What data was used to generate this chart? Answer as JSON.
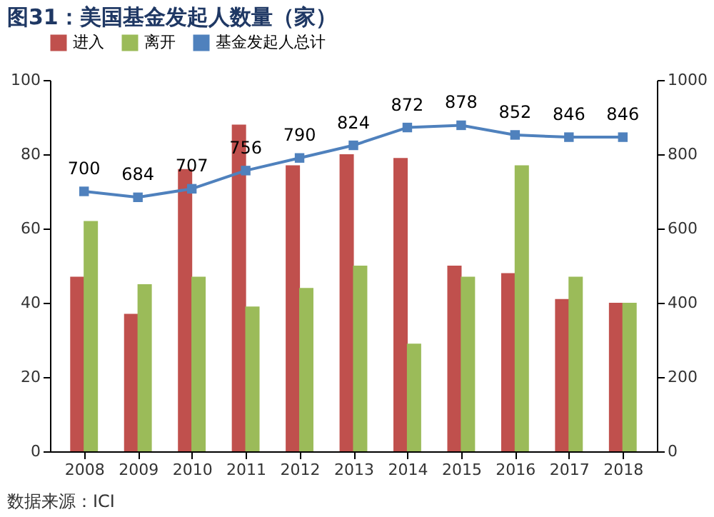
{
  "chart_data": {
    "type": "bar",
    "title": "图31：美国基金发起人数量（家）",
    "categories": [
      "2008",
      "2009",
      "2010",
      "2011",
      "2012",
      "2013",
      "2014",
      "2015",
      "2016",
      "2017",
      "2018"
    ],
    "series": [
      {
        "name": "进入",
        "color": "#c0504d",
        "values": [
          47,
          37,
          76,
          88,
          77,
          80,
          79,
          50,
          48,
          41,
          40
        ]
      },
      {
        "name": "离开",
        "color": "#9bbb59",
        "values": [
          62,
          45,
          47,
          39,
          44,
          50,
          29,
          47,
          77,
          47,
          40
        ]
      },
      {
        "name": "基金发起人总计",
        "color": "#4f81bd",
        "type": "line",
        "axis": "y2",
        "marker": "square",
        "values": [
          700,
          684,
          707,
          756,
          790,
          824,
          872,
          878,
          852,
          846,
          846
        ],
        "value_labels": [
          "700",
          "684",
          "707",
          "756",
          "790",
          "824",
          "872",
          "878",
          "852",
          "846",
          "846"
        ]
      }
    ],
    "ylim": [
      0,
      100
    ],
    "yticks": [
      0,
      20,
      40,
      60,
      80,
      100
    ],
    "y2lim": [
      0,
      1000
    ],
    "y2ticks": [
      0,
      200,
      400,
      600,
      800,
      1000
    ],
    "grid": false,
    "legend": "top",
    "annotations": [
      "数据来源：ICI"
    ]
  }
}
